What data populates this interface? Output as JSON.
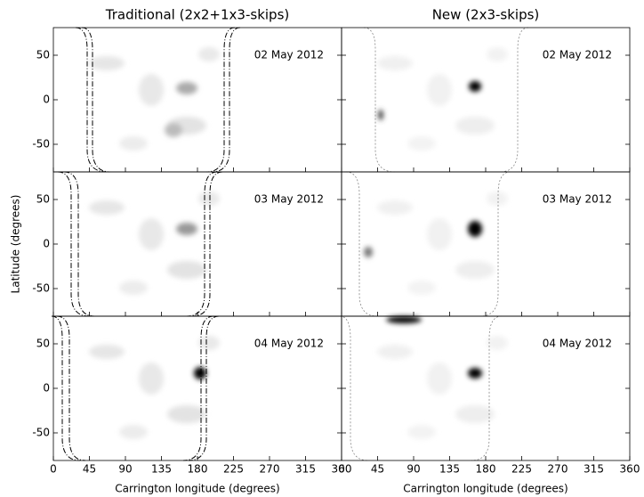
{
  "chart_data": {
    "type": "heatmap",
    "columns": [
      {
        "title": "Traditional (2x2+1x3-skips)"
      },
      {
        "title": "New (2x3-skips)"
      }
    ],
    "dates": [
      "02 May 2012",
      "03 May 2012",
      "04 May 2012"
    ],
    "x_label": "Carrington longitude (degrees)",
    "y_label": "Latitude (degrees)",
    "xlim": [
      0,
      360
    ],
    "xticks": [
      0,
      45,
      90,
      135,
      180,
      225,
      270,
      315,
      360
    ],
    "ylim": [
      -81,
      81
    ],
    "yticks": [
      -50,
      0,
      50
    ]
  }
}
